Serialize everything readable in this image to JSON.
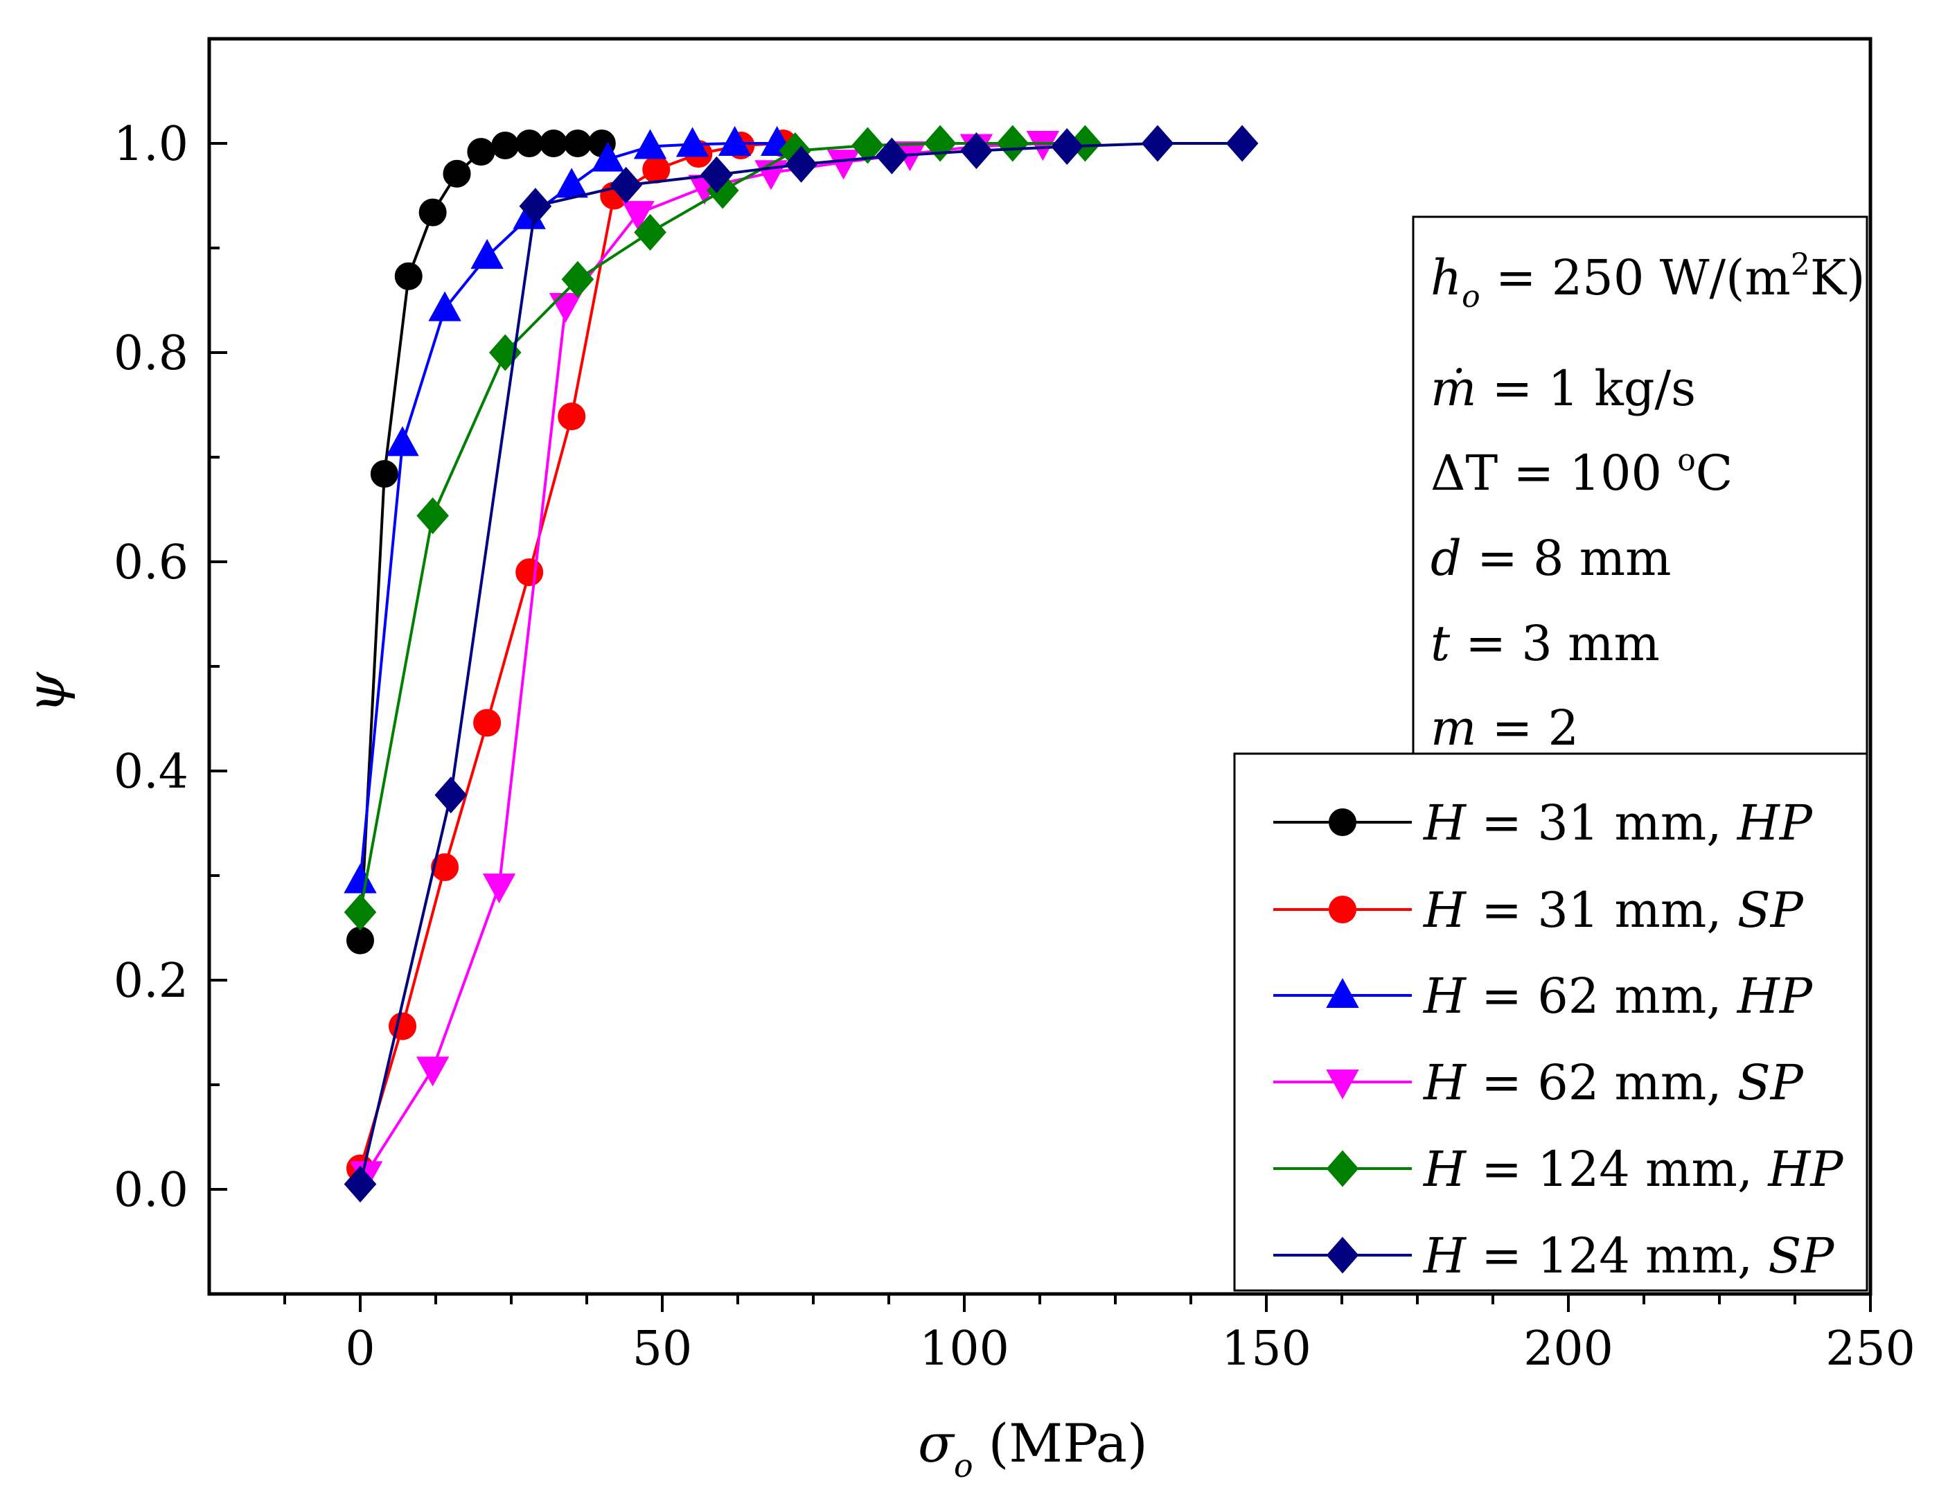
{
  "chart_data": {
    "type": "line",
    "xlabel_symbol": "σ",
    "xlabel_sub": "o",
    "xlabel_unit": "(MPa)",
    "ylabel": "ψ",
    "xlim": [
      -25,
      250
    ],
    "ylim": [
      -0.1,
      1.1
    ],
    "x_ticks": [
      0,
      50,
      100,
      150,
      200,
      250
    ],
    "x_tick_labels": [
      "0",
      "50",
      "100",
      "150",
      "200",
      "250"
    ],
    "y_ticks": [
      0.0,
      0.2,
      0.4,
      0.6,
      0.8,
      1.0
    ],
    "y_tick_labels": [
      "0.0",
      "0.2",
      "0.4",
      "0.6",
      "0.8",
      "1.0"
    ],
    "grid": false,
    "legend_position": "bottom-right",
    "parameters": [
      {
        "symbol": "h",
        "sub": "o",
        "text": " = 250 W/(m",
        "sup": "2",
        "tail": "K)"
      },
      {
        "symbol": "ṁ",
        "sub": "",
        "text": " = 1 kg/s",
        "sup": "",
        "tail": ""
      },
      {
        "symbol": "ΔT",
        "sub": "",
        "text": " = 100 ",
        "sup": "o",
        "tail": "C"
      },
      {
        "symbol": "d",
        "sub": "",
        "text": " = 8 mm",
        "sup": "",
        "tail": ""
      },
      {
        "symbol": "t",
        "sub": "",
        "text": " = 3 mm",
        "sup": "",
        "tail": ""
      },
      {
        "symbol": "m",
        "sub": "",
        "text": " = 2",
        "sup": "",
        "tail": ""
      }
    ],
    "series": [
      {
        "name": "H = 31 mm, HP",
        "lead": "H",
        "mid": " = 31 mm, ",
        "tag": "HP",
        "color": "#000000",
        "marker": "circle",
        "x": [
          0,
          4,
          8,
          12,
          16,
          20,
          24,
          28,
          32,
          36,
          40
        ],
        "y": [
          0.238,
          0.684,
          0.873,
          0.934,
          0.971,
          0.992,
          0.998,
          1.0,
          1.0,
          1.0,
          1.0
        ]
      },
      {
        "name": "H = 31 mm, SP",
        "lead": "H",
        "mid": " = 31 mm, ",
        "tag": "SP",
        "color": "#ff0000",
        "marker": "circle",
        "x": [
          0,
          7,
          14,
          21,
          28,
          35,
          42,
          49,
          56,
          63,
          70
        ],
        "y": [
          0.02,
          0.156,
          0.308,
          0.446,
          0.59,
          0.739,
          0.95,
          0.975,
          0.99,
          0.998,
          1.0
        ]
      },
      {
        "name": "H = 62 mm, HP",
        "lead": "H",
        "mid": " = 62 mm, ",
        "tag": "HP",
        "color": "#0000ff",
        "marker": "triangle-up",
        "x": [
          0,
          7,
          14,
          21,
          28,
          35,
          41,
          48,
          55,
          62,
          69
        ],
        "y": [
          0.295,
          0.713,
          0.842,
          0.892,
          0.93,
          0.96,
          0.985,
          0.997,
          0.999,
          1.0,
          1.0
        ]
      },
      {
        "name": "H = 62 mm, SP",
        "lead": "H",
        "mid": " = 62 mm, ",
        "tag": "SP",
        "color": "#ff00ff",
        "marker": "triangle-down",
        "x": [
          1,
          12,
          23,
          34,
          46,
          57,
          68,
          80,
          91,
          102,
          113
        ],
        "y": [
          0.015,
          0.115,
          0.29,
          0.845,
          0.933,
          0.958,
          0.972,
          0.982,
          0.99,
          0.997,
          1.0
        ]
      },
      {
        "name": "H = 124 mm, HP",
        "lead": "H",
        "mid": " = 124 mm, ",
        "tag": "HP",
        "color": "#008000",
        "marker": "diamond",
        "x": [
          0,
          12,
          24,
          36,
          48,
          60,
          72,
          84,
          96,
          108,
          120
        ],
        "y": [
          0.265,
          0.644,
          0.8,
          0.87,
          0.915,
          0.955,
          0.993,
          0.998,
          1.0,
          1.0,
          1.0
        ]
      },
      {
        "name": "H = 124 mm, SP",
        "lead": "H",
        "mid": " = 124 mm, ",
        "tag": "SP",
        "color": "#000080",
        "marker": "diamond",
        "x": [
          0,
          15,
          29,
          44,
          59,
          73,
          88,
          102,
          117,
          132,
          146
        ],
        "y": [
          0.005,
          0.377,
          0.94,
          0.96,
          0.97,
          0.98,
          0.988,
          0.993,
          0.997,
          1.0,
          1.0
        ]
      }
    ]
  }
}
